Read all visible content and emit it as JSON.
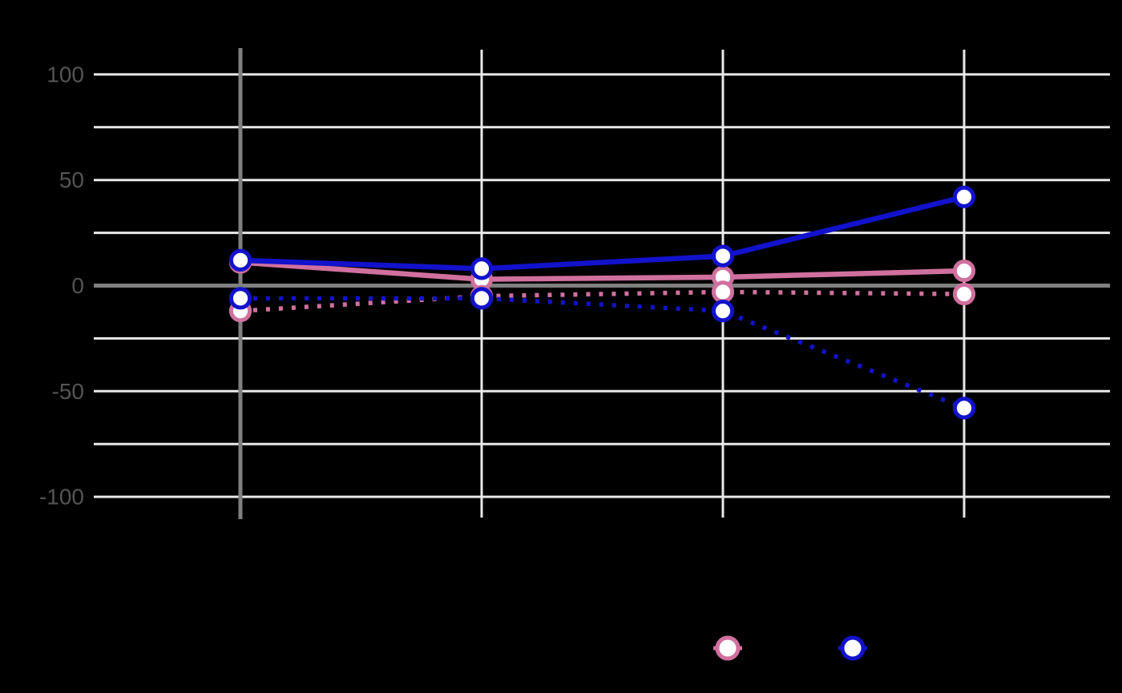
{
  "window": {
    "background_color": "#000000"
  },
  "chart_data": {
    "type": "line",
    "x_positions": [
      0,
      1,
      2,
      3
    ],
    "x_tick_labels_visible": false,
    "series": [
      {
        "name": "pink-solid",
        "color": "#D0709F",
        "line_style": "solid",
        "marker": "circle-white-fill",
        "values": [
          11,
          3,
          4,
          7
        ]
      },
      {
        "name": "pink-dotted",
        "color": "#D0709F",
        "line_style": "dotted",
        "marker": "circle-white-fill",
        "values": [
          -12,
          -5,
          -3,
          -4
        ]
      },
      {
        "name": "blue-solid",
        "color": "#1212CC",
        "line_style": "solid",
        "marker": "circle-white-fill",
        "values": [
          12,
          8,
          14,
          42
        ]
      },
      {
        "name": "blue-dotted",
        "color": "#1212CC",
        "line_style": "dotted",
        "marker": "circle-white-fill",
        "values": [
          -6,
          -6,
          -12,
          -58
        ]
      }
    ],
    "yaxis": {
      "tick_labels": [
        "100",
        "50",
        "0",
        "-50",
        "-100"
      ],
      "tick_values": [
        100,
        50,
        0,
        -50,
        -100
      ],
      "grid_interval": 25,
      "range": [
        -100,
        100
      ],
      "tick_color": "#545454",
      "zeroline_color": "#808080"
    },
    "xaxis": {
      "zeroline_color": "#808080",
      "gridline_color": "#E9E9E9"
    },
    "grid": {
      "horizontal_color": "#E9E9E9",
      "vertical_color": "#E9E9E9",
      "grid_on": true
    },
    "marker_fill": "#FFFFFF",
    "legend": {
      "position": "bottom",
      "entries": [
        {
          "name": "pink-series",
          "color": "#D0709F",
          "swatch": "line-with-circle-marker",
          "label": ""
        },
        {
          "name": "blue-series",
          "color": "#1212CC",
          "swatch": "line-with-circle-marker",
          "label": ""
        }
      ]
    },
    "title": "",
    "xlabel": "",
    "ylabel": ""
  }
}
